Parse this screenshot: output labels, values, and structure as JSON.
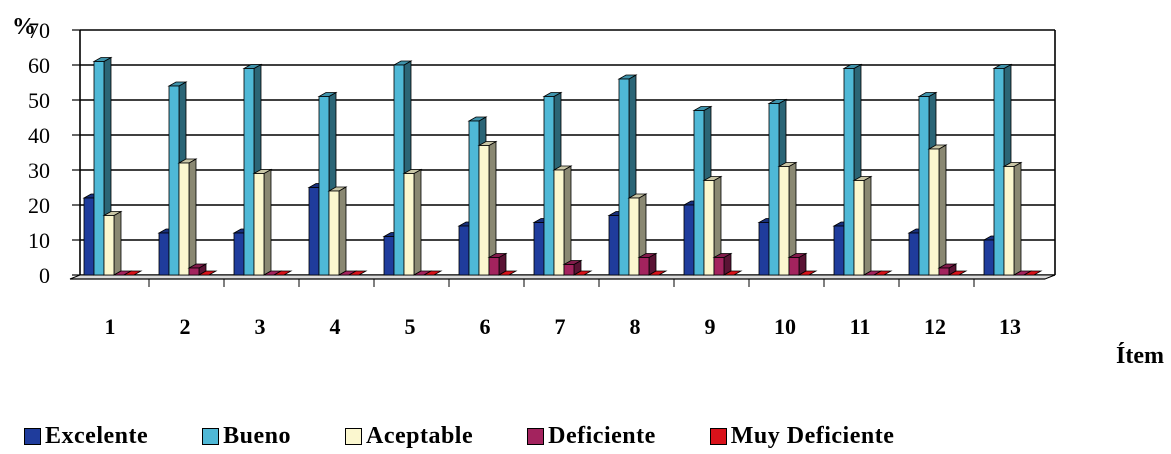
{
  "chart_data": {
    "type": "bar",
    "title": "",
    "ylabel": "%",
    "xlabel": "Ítem",
    "ylim": [
      0,
      70
    ],
    "yticks": [
      "0",
      "10",
      "20",
      "30",
      "40",
      "50",
      "60",
      "70"
    ],
    "categories": [
      "1",
      "2",
      "3",
      "4",
      "5",
      "6",
      "7",
      "8",
      "9",
      "10",
      "11",
      "12",
      "13"
    ],
    "grid": true,
    "legend_position": "bottom",
    "series": [
      {
        "name": "Excelente",
        "color": "#1f3c9c",
        "values": [
          22,
          12,
          12,
          25,
          11,
          14,
          15,
          17,
          20,
          15,
          14,
          12,
          10
        ]
      },
      {
        "name": "Bueno",
        "color": "#4fb8d6",
        "values": [
          61,
          54,
          59,
          51,
          60,
          44,
          51,
          56,
          47,
          49,
          59,
          51,
          59
        ]
      },
      {
        "name": "Aceptable",
        "color": "#fbf7cf",
        "values": [
          17,
          32,
          29,
          24,
          29,
          37,
          30,
          22,
          27,
          31,
          27,
          36,
          31
        ]
      },
      {
        "name": "Deficiente",
        "color": "#a3235e",
        "values": [
          0,
          2,
          0,
          0,
          0,
          5,
          3,
          5,
          5,
          5,
          0,
          2,
          0
        ]
      },
      {
        "name": "Muy Deficiente",
        "color": "#d9121a",
        "values": [
          0,
          0,
          0,
          0,
          0,
          0,
          0,
          0,
          0,
          0,
          0,
          0,
          0
        ]
      }
    ]
  }
}
